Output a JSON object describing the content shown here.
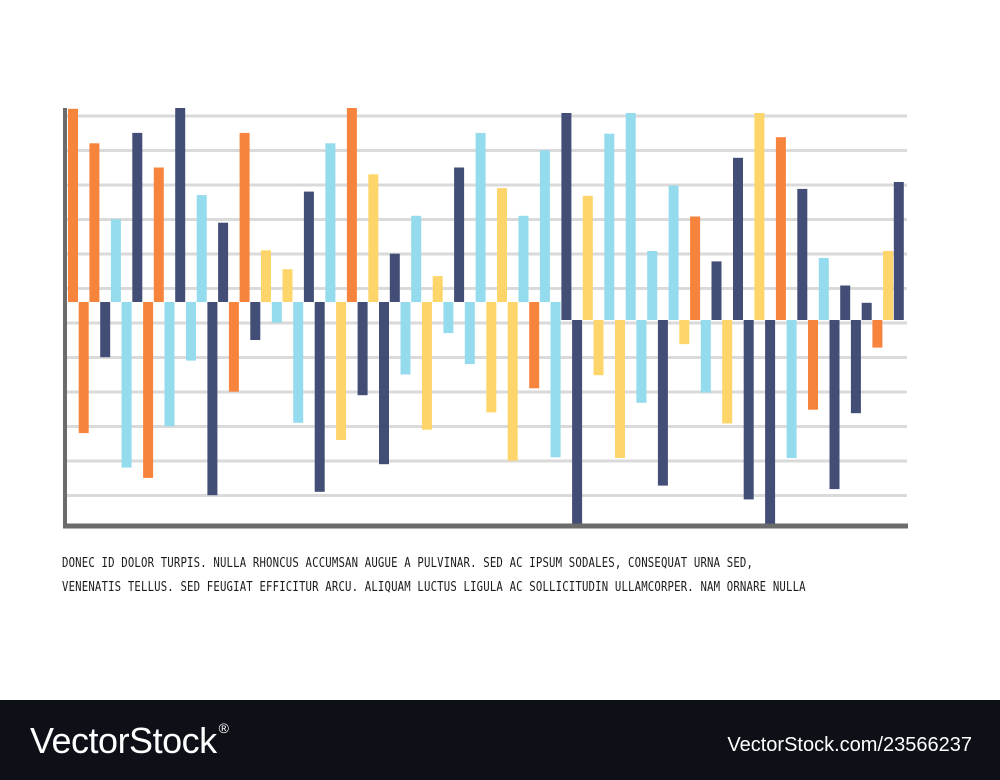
{
  "chart_data": {
    "type": "bar",
    "title": "",
    "xlabel": "",
    "ylabel": "",
    "grid": true,
    "colors": {
      "orange": "#f7843d",
      "navy": "#424e75",
      "lightblue": "#94dbed",
      "yellow": "#fdd56a",
      "gridline": "#dadada",
      "axis": "#6b6b6b"
    },
    "segments": [
      {
        "baseline": 0,
        "bars": [
          {
            "color": "orange",
            "value": 5.6
          },
          {
            "color": "orange",
            "value": 4.6
          },
          {
            "color": "lightblue",
            "value": 2.4
          },
          {
            "color": "navy",
            "value": 4.9
          },
          {
            "color": "orange",
            "value": 3.9
          },
          {
            "color": "navy",
            "value": 5.9
          },
          {
            "color": "lightblue",
            "value": 3.1
          },
          {
            "color": "navy",
            "value": 2.3
          },
          {
            "color": "orange",
            "value": 4.9
          },
          {
            "color": "yellow",
            "value": 1.5
          },
          {
            "color": "yellow",
            "value": 0.95
          },
          {
            "color": "navy",
            "value": 3.2
          },
          {
            "color": "lightblue",
            "value": 4.6
          },
          {
            "color": "orange",
            "value": 5.9
          },
          {
            "color": "yellow",
            "value": 3.7
          },
          {
            "color": "navy",
            "value": 1.4
          },
          {
            "color": "lightblue",
            "value": 2.5
          },
          {
            "color": "yellow",
            "value": 0.75
          },
          {
            "color": "navy",
            "value": 3.9
          },
          {
            "color": "lightblue",
            "value": 4.9
          },
          {
            "color": "yellow",
            "value": 3.3
          },
          {
            "color": "lightblue",
            "value": 2.5
          },
          {
            "color": "lightblue",
            "value": 4.4
          },
          {
            "color": "navy",
            "value": 6.0
          },
          {
            "color": "yellow",
            "value": 3.6
          },
          {
            "color": "lightblue",
            "value": 5.4
          },
          {
            "color": "lightblue",
            "value": 6.0
          },
          {
            "color": "lightblue",
            "value": 2.0
          },
          {
            "color": "lightblue",
            "value": 3.9
          },
          {
            "color": "orange",
            "value": 3.0
          },
          {
            "color": "navy",
            "value": 1.7
          },
          {
            "color": "navy",
            "value": 4.7
          },
          {
            "color": "yellow",
            "value": 6.0
          },
          {
            "color": "orange",
            "value": 5.3
          },
          {
            "color": "navy",
            "value": 3.8
          },
          {
            "color": "lightblue",
            "value": 1.8
          },
          {
            "color": "navy",
            "value": 1.0
          },
          {
            "color": "navy",
            "value": 0.5
          },
          {
            "color": "yellow",
            "value": 2.0
          },
          {
            "color": "navy",
            "value": 4.0
          }
        ]
      },
      {
        "baseline": 0,
        "bars": [
          {
            "color": "orange",
            "value": -3.8
          },
          {
            "color": "navy",
            "value": -1.6
          },
          {
            "color": "lightblue",
            "value": -4.8
          },
          {
            "color": "orange",
            "value": -5.1
          },
          {
            "color": "lightblue",
            "value": -3.6
          },
          {
            "color": "lightblue",
            "value": -1.7
          },
          {
            "color": "navy",
            "value": -5.6
          },
          {
            "color": "orange",
            "value": -2.6
          },
          {
            "color": "navy",
            "value": -1.1
          },
          {
            "color": "lightblue",
            "value": -0.6
          },
          {
            "color": "lightblue",
            "value": -3.5
          },
          {
            "color": "navy",
            "value": -5.5
          },
          {
            "color": "yellow",
            "value": -4.0
          },
          {
            "color": "navy",
            "value": -2.7
          },
          {
            "color": "navy",
            "value": -4.7
          },
          {
            "color": "lightblue",
            "value": -2.1
          },
          {
            "color": "yellow",
            "value": -3.7
          },
          {
            "color": "lightblue",
            "value": -0.9
          },
          {
            "color": "lightblue",
            "value": -1.8
          },
          {
            "color": "yellow",
            "value": -3.2
          },
          {
            "color": "yellow",
            "value": -4.6
          },
          {
            "color": "orange",
            "value": -2.5
          },
          {
            "color": "lightblue",
            "value": -4.5
          },
          {
            "color": "navy",
            "value": -6.0
          },
          {
            "color": "yellow",
            "value": -1.6
          },
          {
            "color": "yellow",
            "value": -4.0
          },
          {
            "color": "lightblue",
            "value": -2.4
          },
          {
            "color": "navy",
            "value": -4.8
          },
          {
            "color": "yellow",
            "value": -0.7
          },
          {
            "color": "lightblue",
            "value": -2.1
          },
          {
            "color": "yellow",
            "value": -3.0
          },
          {
            "color": "navy",
            "value": -5.2
          },
          {
            "color": "navy",
            "value": -6.0
          },
          {
            "color": "lightblue",
            "value": -4.0
          },
          {
            "color": "orange",
            "value": -2.6
          },
          {
            "color": "navy",
            "value": -4.9
          },
          {
            "color": "navy",
            "value": -2.7
          },
          {
            "color": "orange",
            "value": -0.8
          }
        ]
      }
    ]
  },
  "caption": {
    "line1": "DONEC ID DOLOR TURPIS. NULLA RHONCUS ACCUMSAN AUGUE A PULVINAR. SED AC IPSUM SODALES, CONSEQUAT URNA SED,",
    "line2": "VENENATIS TELLUS. SED FEUGIAT EFFICITUR ARCU. ALIQUAM LUCTUS LIGULA AC SOLLICITUDIN ULLAMCORPER. NAM ORNARE NULLA"
  },
  "footer": {
    "logo_text": "VectorStock",
    "logo_mark": "®",
    "image_id": "VectorStock.com/23566237"
  }
}
